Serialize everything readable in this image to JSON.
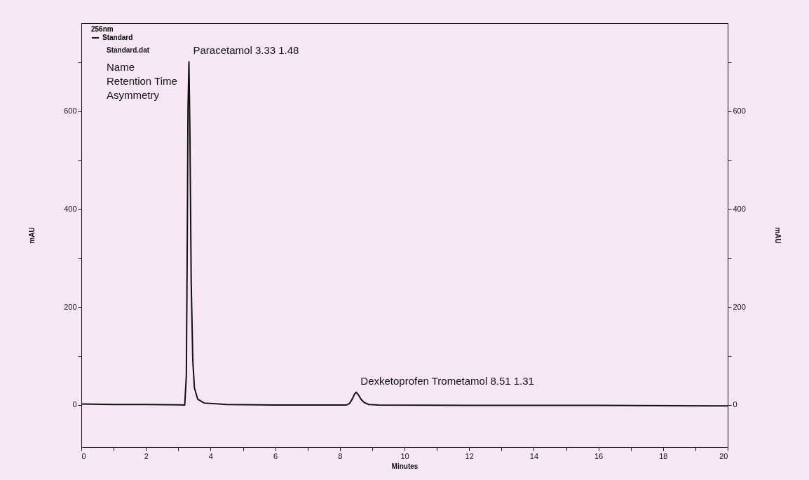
{
  "chart_data": {
    "type": "line",
    "xlabel": "Minutes",
    "ylabel": "mAU",
    "y2label": "mAU",
    "legend_title": "256nm",
    "x": [
      0,
      1,
      2,
      3.2,
      3.25,
      3.28,
      3.3,
      3.33,
      3.36,
      3.4,
      3.45,
      3.5,
      3.6,
      3.8,
      4.5,
      6,
      8.2,
      8.3,
      8.4,
      8.45,
      8.51,
      8.58,
      8.65,
      8.75,
      8.9,
      9.2,
      12,
      16,
      20
    ],
    "series": [
      {
        "name": "Standard",
        "color": "#111111",
        "values": [
          2,
          1,
          1,
          0,
          60,
          350,
          600,
          701,
          560,
          250,
          90,
          35,
          12,
          4,
          1,
          0,
          0,
          3,
          14,
          22,
          26,
          20,
          12,
          5,
          1,
          0,
          -1,
          -1,
          -2
        ]
      }
    ],
    "xlim": [
      0,
      20
    ],
    "xticks": [
      0,
      {
        "value": 1,
        "label": null
      },
      2,
      {
        "value": 3,
        "label": null
      },
      4,
      {
        "value": 5,
        "label": null
      },
      6,
      {
        "value": 7,
        "label": null
      },
      8,
      {
        "value": 9,
        "label": null
      },
      10,
      {
        "value": 11,
        "label": null
      },
      12,
      {
        "value": 13,
        "label": null
      },
      14,
      {
        "value": 15,
        "label": null
      },
      16,
      {
        "value": 17,
        "label": null
      },
      18,
      {
        "value": 19,
        "label": null
      },
      20
    ],
    "ylim": [
      -86,
      780
    ],
    "yticks": [
      0,
      {
        "value": 100,
        "label": null
      },
      200,
      {
        "value": 300,
        "label": null
      },
      400,
      {
        "value": 500,
        "label": null
      },
      600,
      {
        "value": 700,
        "label": null
      }
    ],
    "y2lim": [
      -86,
      780
    ],
    "y2ticks": [
      0,
      {
        "value": 100,
        "label": null
      },
      200,
      {
        "value": 300,
        "label": null
      },
      400,
      {
        "value": 500,
        "label": null
      },
      600,
      {
        "value": 700,
        "label": null
      }
    ],
    "legend": "top left",
    "grid": false,
    "marker": "none",
    "line_style": "solid",
    "annotations": [
      "Standard.dat",
      "Name",
      "Retention Time",
      "Asymmetry",
      {
        "text": "Paracetamol  3.33  1.48",
        "x": 3.33,
        "y": 701
      },
      {
        "text": "Dexketoprofen Trometamol  8.51  1.31",
        "x": 8.51,
        "y": 26
      }
    ]
  }
}
